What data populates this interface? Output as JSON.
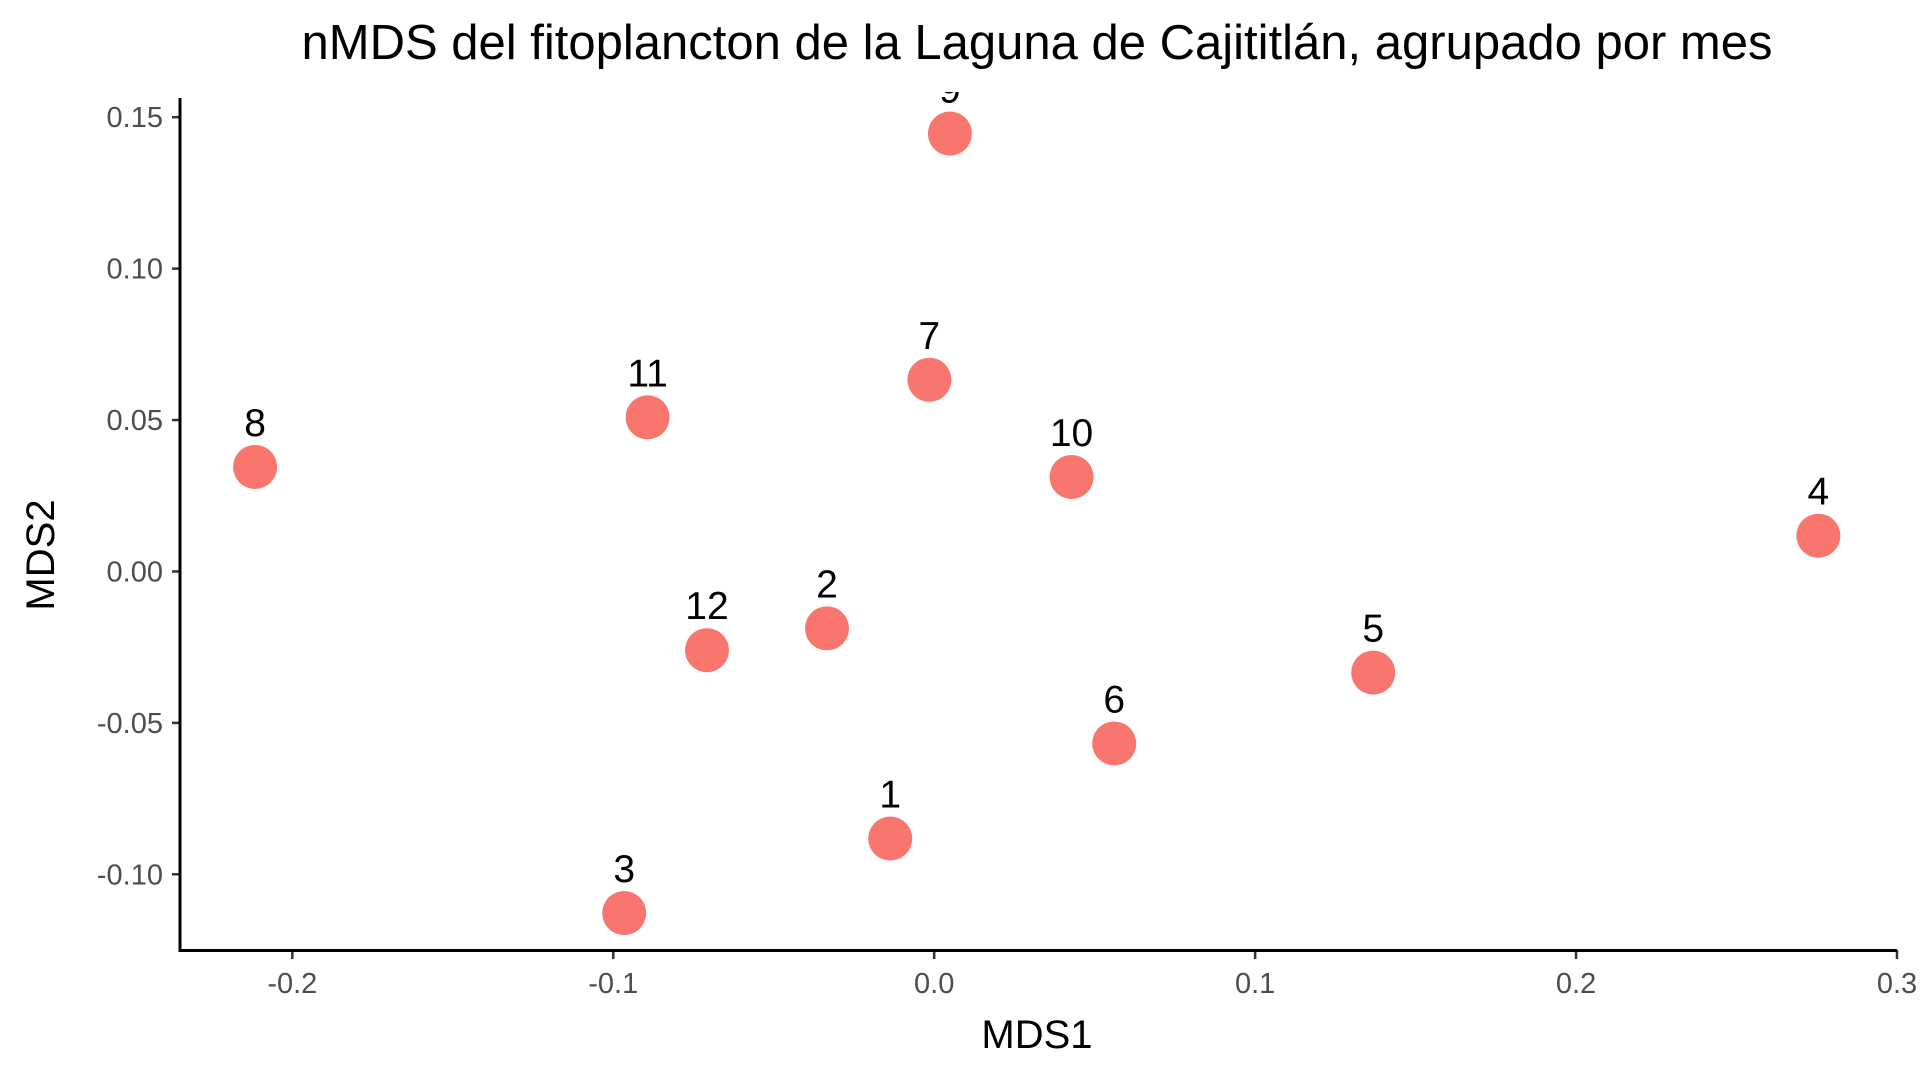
{
  "chart_data": {
    "type": "scatter",
    "title": "nMDS del fitoplancton de la Laguna de Cajititlán, agrupado por mes",
    "xlabel": "MDS1",
    "ylabel": "MDS2",
    "xlim": [
      -0.235,
      0.3
    ],
    "ylim": [
      -0.125,
      0.157
    ],
    "grid": false,
    "legend": "none",
    "point_color": "#F8766D",
    "label_color": "#000000",
    "xticks": [
      {
        "value": -0.2,
        "label": "-0.2"
      },
      {
        "value": -0.1,
        "label": "-0.1"
      },
      {
        "value": 0.0,
        "label": "0.0"
      },
      {
        "value": 0.1,
        "label": "0.1"
      },
      {
        "value": 0.2,
        "label": "0.2"
      },
      {
        "value": 0.3,
        "label": "0.3"
      }
    ],
    "yticks": [
      {
        "value": -0.1,
        "label": "-0.10"
      },
      {
        "value": -0.05,
        "label": "-0.05"
      },
      {
        "value": 0.0,
        "label": "0.00"
      },
      {
        "value": 0.05,
        "label": "0.05"
      },
      {
        "value": 0.1,
        "label": "0.10"
      },
      {
        "value": 0.15,
        "label": "0.15"
      }
    ],
    "points": [
      {
        "label": "1",
        "x": -0.0137,
        "y": -0.0882
      },
      {
        "label": "2",
        "x": -0.0334,
        "y": -0.0188
      },
      {
        "label": "3",
        "x": -0.0966,
        "y": -0.1128
      },
      {
        "label": "4",
        "x": 0.2755,
        "y": 0.0118
      },
      {
        "label": "5",
        "x": 0.1368,
        "y": -0.0334
      },
      {
        "label": "6",
        "x": 0.0561,
        "y": -0.0568
      },
      {
        "label": "7",
        "x": -0.0015,
        "y": 0.0633
      },
      {
        "label": "8",
        "x": -0.2116,
        "y": 0.0345
      },
      {
        "label": "9",
        "x": 0.0049,
        "y": 0.1446
      },
      {
        "label": "10",
        "x": 0.0428,
        "y": 0.0312
      },
      {
        "label": "11",
        "x": -0.0893,
        "y": 0.0509
      },
      {
        "label": "12",
        "x": -0.0708,
        "y": -0.026
      }
    ]
  }
}
